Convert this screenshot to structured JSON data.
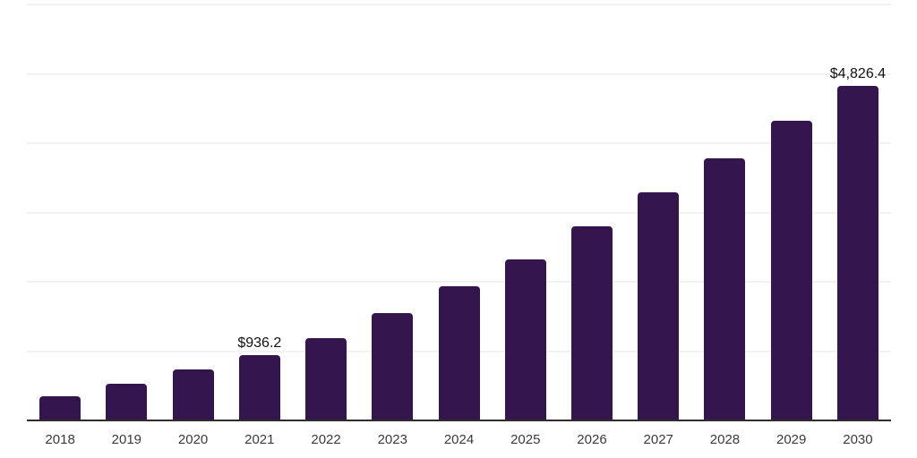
{
  "chart_data": {
    "type": "bar",
    "categories": [
      "2018",
      "2019",
      "2020",
      "2021",
      "2022",
      "2023",
      "2024",
      "2025",
      "2026",
      "2027",
      "2028",
      "2029",
      "2030"
    ],
    "values": [
      348,
      529,
      735,
      936.2,
      1187,
      1548,
      1935,
      2322,
      2800,
      3290,
      3781,
      4323,
      4826.4
    ],
    "data_labels": [
      "",
      "",
      "",
      "$936.2",
      "",
      "",
      "",
      "",
      "",
      "",
      "",
      "",
      "$4,826.4"
    ],
    "title": "",
    "xlabel": "",
    "ylabel": "",
    "ylim": [
      0,
      6000
    ],
    "gridline_step": 1000,
    "grid": "horizontal-only",
    "legend_position": "none",
    "colors": {
      "bar": "#35154e",
      "axis_line": "#2e2e2e",
      "gridline": "#f2f2f2",
      "value_label": "#111111",
      "tick_label": "#3a3a3a",
      "background": "#ffffff"
    }
  }
}
